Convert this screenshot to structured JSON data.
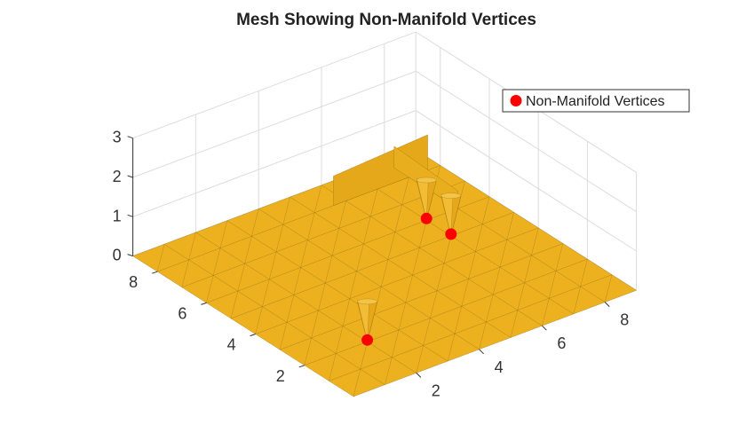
{
  "chart_data": {
    "type": "surface",
    "title": "Mesh Showing Non-Manifold Vertices",
    "xlabel": "",
    "ylabel": "",
    "zlabel": "",
    "xlim": [
      0,
      9
    ],
    "ylim": [
      0,
      9
    ],
    "zlim": [
      0,
      3
    ],
    "x_ticks": [
      {
        "value": 2,
        "label": "2"
      },
      {
        "value": 4,
        "label": "4"
      },
      {
        "value": 6,
        "label": "6"
      },
      {
        "value": 8,
        "label": "8"
      }
    ],
    "y_ticks": [
      {
        "value": 2,
        "label": "2"
      },
      {
        "value": 4,
        "label": "4"
      },
      {
        "value": 6,
        "label": "6"
      },
      {
        "value": 8,
        "label": "8"
      }
    ],
    "z_ticks": [
      {
        "value": 0,
        "label": "0"
      },
      {
        "value": 1,
        "label": "1"
      },
      {
        "value": 2,
        "label": "2"
      },
      {
        "value": 3,
        "label": "3"
      }
    ],
    "grid": true,
    "mesh": {
      "grid_size": 9,
      "face_color": "#EDB120",
      "edge_color": "#8A6A10"
    },
    "spikes": [
      {
        "x": 2,
        "y": 2,
        "height": 1.0
      },
      {
        "x": 7,
        "y": 5,
        "height": 1.0
      },
      {
        "x": 7,
        "y": 6,
        "height": 1.0
      }
    ],
    "legend": {
      "location": "northeast",
      "entries": [
        {
          "label": "Non-Manifold Vertices",
          "color": "#FF0000",
          "marker": "circle"
        }
      ]
    },
    "series": [
      {
        "name": "Non-Manifold Vertices",
        "type": "scatter3",
        "color": "#FF0000",
        "points": [
          {
            "x": 2,
            "y": 2,
            "z": 0
          },
          {
            "x": 7,
            "y": 5,
            "z": 0
          },
          {
            "x": 7,
            "y": 6,
            "z": 0
          }
        ]
      }
    ]
  }
}
